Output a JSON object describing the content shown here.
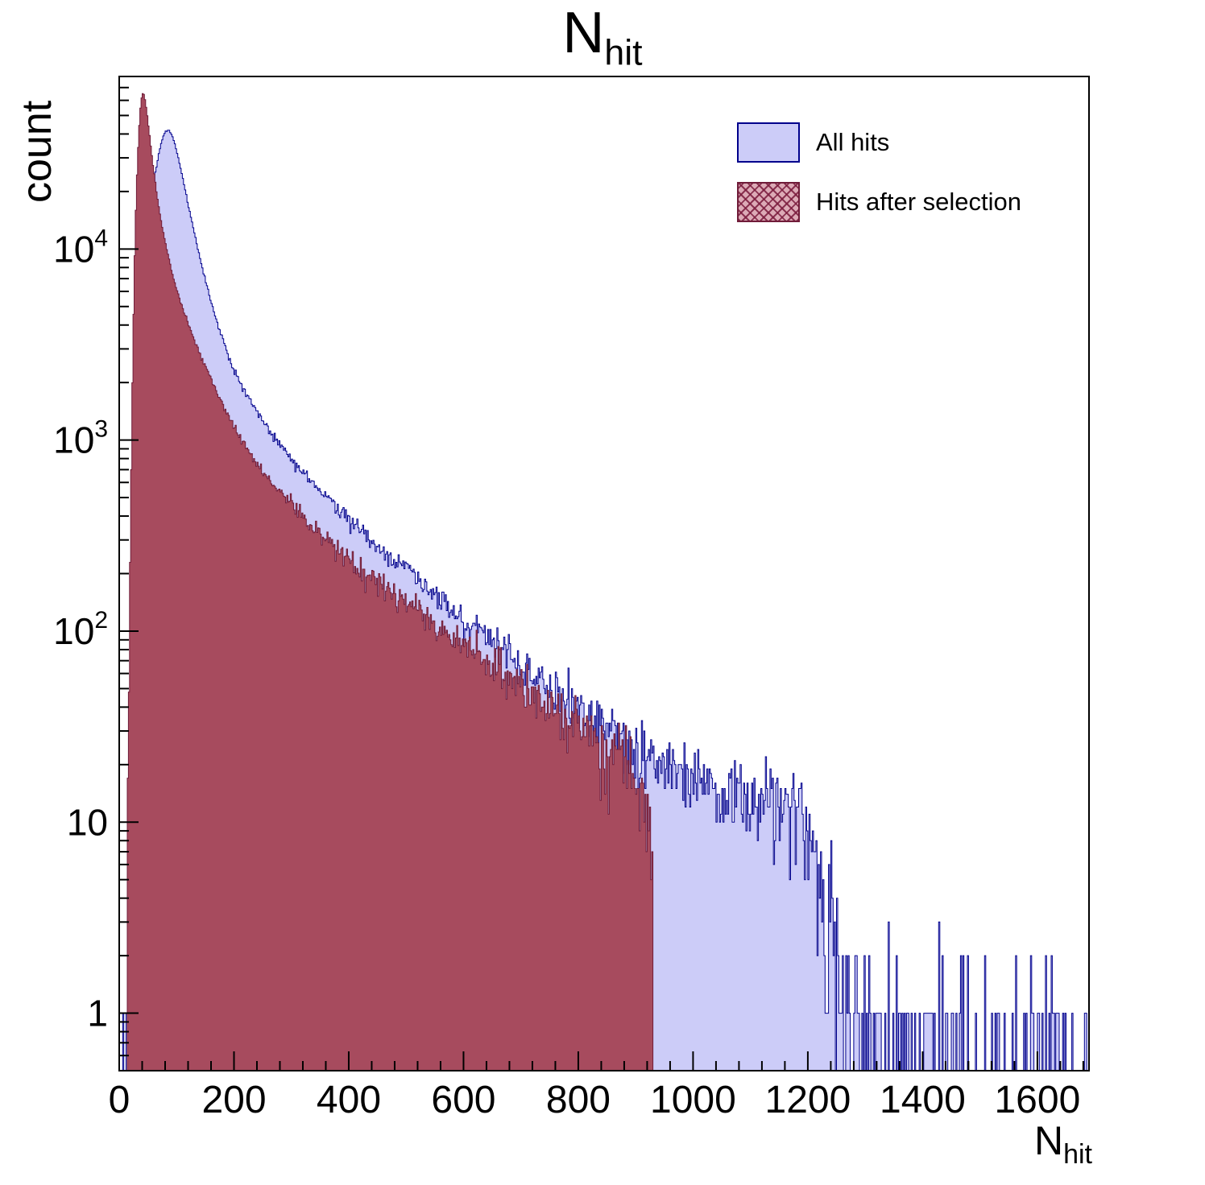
{
  "window": {
    "background": "#ffffff"
  },
  "chart_data": {
    "type": "histogram",
    "title_main": "N",
    "title_sub": "hit",
    "ylabel": "count",
    "xlabel_main": "N",
    "xlabel_sub": "hit",
    "x_min": 0,
    "x_max": 1690,
    "y_min": 0.5,
    "y_max": 80000,
    "y_log": true,
    "bin_width": 2,
    "axis_color": "#000000",
    "x_major_ticks": [
      0,
      200,
      400,
      600,
      800,
      1000,
      1200,
      1400,
      1600
    ],
    "x_minor_step": 40,
    "y_decade_labels": [
      {
        "value": 1,
        "text": "1",
        "sup": ""
      },
      {
        "value": 10,
        "text": "10",
        "sup": ""
      },
      {
        "value": 100,
        "text": "10",
        "sup": "2"
      },
      {
        "value": 1000,
        "text": "10",
        "sup": "3"
      },
      {
        "value": 10000,
        "text": "10",
        "sup": "4"
      }
    ],
    "legend": [
      {
        "label": "All hits",
        "fill": "#ccccf8",
        "stroke": "#00008c",
        "pattern": "solid"
      },
      {
        "label": "Hits after selection",
        "fill": "#a74b5e",
        "stroke": "#701c39",
        "pattern": "crosshatch"
      }
    ],
    "series": [
      {
        "name": "All hits",
        "fill": "#ccccf8",
        "stroke": "#00008c",
        "seed": 7,
        "anchors": [
          [
            0,
            0
          ],
          [
            8,
            0.25
          ],
          [
            12,
            1.2
          ],
          [
            16,
            5
          ],
          [
            20,
            18
          ],
          [
            25,
            85
          ],
          [
            30,
            340
          ],
          [
            35,
            1100
          ],
          [
            40,
            3100
          ],
          [
            45,
            6600
          ],
          [
            50,
            11000
          ],
          [
            56,
            17500
          ],
          [
            62,
            24000
          ],
          [
            68,
            30500
          ],
          [
            74,
            36500
          ],
          [
            80,
            41200
          ],
          [
            86,
            42000
          ],
          [
            92,
            39500
          ],
          [
            98,
            34500
          ],
          [
            106,
            27500
          ],
          [
            114,
            21000
          ],
          [
            122,
            16200
          ],
          [
            130,
            12500
          ],
          [
            140,
            9100
          ],
          [
            150,
            6900
          ],
          [
            162,
            5100
          ],
          [
            174,
            3850
          ],
          [
            188,
            2850
          ],
          [
            200,
            2300
          ],
          [
            215,
            1900
          ],
          [
            230,
            1580
          ],
          [
            245,
            1340
          ],
          [
            260,
            1150
          ],
          [
            280,
            950
          ],
          [
            300,
            800
          ],
          [
            325,
            655
          ],
          [
            350,
            545
          ],
          [
            375,
            455
          ],
          [
            400,
            385
          ],
          [
            430,
            315
          ],
          [
            460,
            260
          ],
          [
            490,
            218
          ],
          [
            520,
            183
          ],
          [
            550,
            154
          ],
          [
            580,
            130
          ],
          [
            610,
            110
          ],
          [
            640,
            94
          ],
          [
            670,
            80
          ],
          [
            700,
            68
          ],
          [
            730,
            58
          ],
          [
            760,
            50
          ],
          [
            790,
            43
          ],
          [
            820,
            37
          ],
          [
            850,
            32
          ],
          [
            880,
            28
          ],
          [
            910,
            24
          ],
          [
            940,
            21
          ],
          [
            970,
            18.5
          ],
          [
            1000,
            16.5
          ],
          [
            1035,
            15
          ],
          [
            1070,
            14
          ],
          [
            1110,
            13.5
          ],
          [
            1150,
            13
          ],
          [
            1185,
            12.5
          ],
          [
            1200,
            9.5
          ],
          [
            1212,
            6.5
          ],
          [
            1225,
            4.2
          ],
          [
            1240,
            2.6
          ],
          [
            1258,
            1.6
          ],
          [
            1280,
            1.0
          ],
          [
            1310,
            0.75
          ],
          [
            1350,
            0.6
          ],
          [
            1400,
            0.5
          ],
          [
            1460,
            0.42
          ],
          [
            1530,
            0.38
          ],
          [
            1600,
            0.33
          ],
          [
            1690,
            0.3
          ]
        ]
      },
      {
        "name": "Hits after selection",
        "fill": "#a74b5e",
        "stroke": "#701c39",
        "seed": 13,
        "anchors": [
          [
            0,
            0
          ],
          [
            8,
            0.25
          ],
          [
            12,
            2.5
          ],
          [
            16,
            30
          ],
          [
            20,
            420
          ],
          [
            24,
            3200
          ],
          [
            28,
            13000
          ],
          [
            32,
            30000
          ],
          [
            36,
            51000
          ],
          [
            40,
            66000
          ],
          [
            44,
            63500
          ],
          [
            48,
            53000
          ],
          [
            54,
            37000
          ],
          [
            60,
            26000
          ],
          [
            66,
            19000
          ],
          [
            74,
            13500
          ],
          [
            82,
            10200
          ],
          [
            92,
            7600
          ],
          [
            102,
            5900
          ],
          [
            114,
            4550
          ],
          [
            126,
            3650
          ],
          [
            140,
            2850
          ],
          [
            154,
            2270
          ],
          [
            170,
            1780
          ],
          [
            186,
            1430
          ],
          [
            200,
            1180
          ],
          [
            218,
            950
          ],
          [
            236,
            790
          ],
          [
            254,
            670
          ],
          [
            275,
            560
          ],
          [
            296,
            475
          ],
          [
            320,
            400
          ],
          [
            345,
            338
          ],
          [
            372,
            285
          ],
          [
            400,
            240
          ],
          [
            430,
            202
          ],
          [
            460,
            172
          ],
          [
            492,
            146
          ],
          [
            525,
            124
          ],
          [
            560,
            105
          ],
          [
            595,
            89
          ],
          [
            630,
            76
          ],
          [
            670,
            63
          ],
          [
            710,
            48
          ],
          [
            750,
            40
          ],
          [
            790,
            33
          ],
          [
            830,
            27
          ],
          [
            860,
            23
          ],
          [
            890,
            19
          ],
          [
            910,
            15
          ],
          [
            922,
            11
          ],
          [
            929,
            7
          ],
          [
            932,
            0
          ],
          [
            1690,
            0
          ]
        ]
      }
    ]
  }
}
